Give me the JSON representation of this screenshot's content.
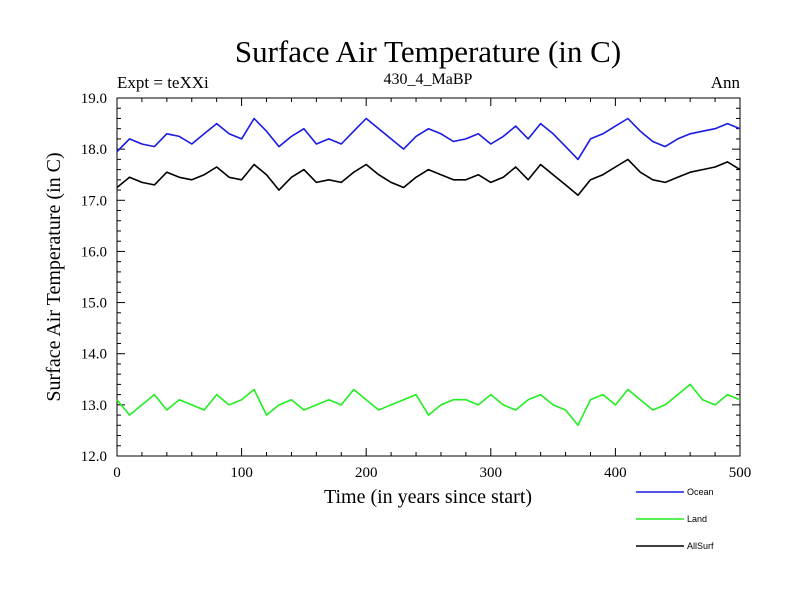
{
  "chart_data": {
    "type": "line",
    "title": "Surface Air Temperature (in C)",
    "subtitle": "430_4_MaBP",
    "left_label": "Expt = teXXi",
    "right_label": "Ann",
    "xlabel": "Time (in years since start)",
    "ylabel": "Surface Air Temperature (in C)",
    "xlim": [
      0,
      500
    ],
    "ylim": [
      12.0,
      19.0
    ],
    "x_ticks": [
      0,
      100,
      200,
      300,
      400,
      500
    ],
    "x_tick_labels": [
      "0",
      "100",
      "200",
      "300",
      "400",
      "500"
    ],
    "y_ticks": [
      12,
      13,
      14,
      15,
      16,
      17,
      18,
      19
    ],
    "y_tick_labels": [
      "12.0",
      "13.0",
      "14.0",
      "15.0",
      "16.0",
      "17.0",
      "18.0",
      "19.0"
    ],
    "grid": false,
    "legend_position": "bottom-right, outside plot",
    "x_step_years": 10,
    "series": [
      {
        "name": "Ocean",
        "color": "#1a1ae6",
        "values": [
          17.95,
          18.2,
          18.1,
          18.05,
          18.3,
          18.25,
          18.1,
          18.3,
          18.5,
          18.3,
          18.2,
          18.6,
          18.35,
          18.05,
          18.25,
          18.4,
          18.1,
          18.2,
          18.1,
          18.35,
          18.6,
          18.4,
          18.2,
          18.0,
          18.25,
          18.4,
          18.3,
          18.15,
          18.2,
          18.3,
          18.1,
          18.25,
          18.45,
          18.2,
          18.5,
          18.3,
          18.05,
          17.8,
          18.2,
          18.3,
          18.45,
          18.6,
          18.35,
          18.15,
          18.05,
          18.2,
          18.3,
          18.35,
          18.4,
          18.5,
          18.4
        ]
      },
      {
        "name": "Land",
        "color": "#22ee22",
        "values": [
          13.1,
          12.8,
          13.0,
          13.2,
          12.9,
          13.1,
          13.0,
          12.9,
          13.2,
          13.0,
          13.1,
          13.3,
          12.8,
          13.0,
          13.1,
          12.9,
          13.0,
          13.1,
          13.0,
          13.3,
          13.1,
          12.9,
          13.0,
          13.1,
          13.2,
          12.8,
          13.0,
          13.1,
          13.1,
          13.0,
          13.2,
          13.0,
          12.9,
          13.1,
          13.2,
          13.0,
          12.9,
          12.6,
          13.1,
          13.2,
          13.0,
          13.3,
          13.1,
          12.9,
          13.0,
          13.2,
          13.4,
          13.1,
          13.0,
          13.2,
          13.1
        ]
      },
      {
        "name": "AllSurf",
        "color": "#000000",
        "values": [
          17.25,
          17.45,
          17.35,
          17.3,
          17.55,
          17.45,
          17.4,
          17.5,
          17.65,
          17.45,
          17.4,
          17.7,
          17.5,
          17.2,
          17.45,
          17.6,
          17.35,
          17.4,
          17.35,
          17.55,
          17.7,
          17.5,
          17.35,
          17.25,
          17.45,
          17.6,
          17.5,
          17.4,
          17.4,
          17.5,
          17.35,
          17.45,
          17.65,
          17.4,
          17.7,
          17.5,
          17.3,
          17.1,
          17.4,
          17.5,
          17.65,
          17.8,
          17.55,
          17.4,
          17.35,
          17.45,
          17.55,
          17.6,
          17.65,
          17.75,
          17.6
        ]
      }
    ]
  }
}
